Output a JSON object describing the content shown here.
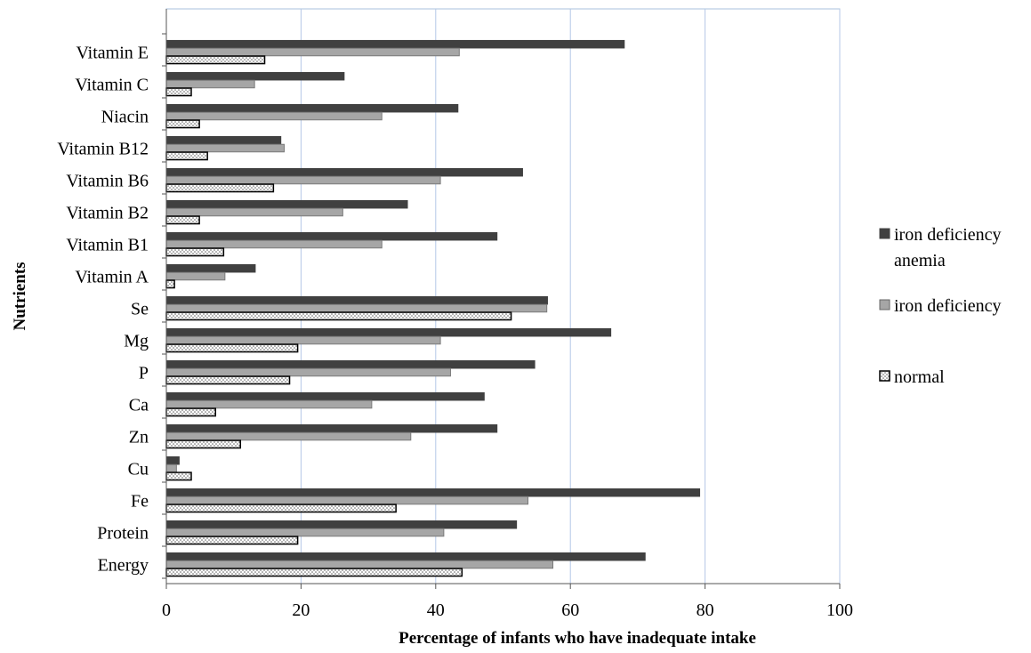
{
  "chart_data": {
    "type": "bar",
    "orientation": "horizontal",
    "title": "",
    "xlabel": "Percentage of infants who have inadequate intake",
    "ylabel": "Nutrients",
    "xlim": [
      0,
      100
    ],
    "xticks": [
      0,
      20,
      40,
      60,
      80,
      100
    ],
    "grid": true,
    "legend_position": "right",
    "categories": [
      "Vitamin E",
      "Vitamin C",
      "Niacin",
      "Vitamin B12",
      "Vitamin B6",
      "Vitamin B2",
      "Vitamin B1",
      "Vitamin A",
      "Se",
      "Mg",
      "P",
      "Ca",
      "Zn",
      "Cu",
      "Fe",
      "Protein",
      "Energy"
    ],
    "series": [
      {
        "name": "iron deficiency anemia",
        "name_lines": [
          "iron deficiency",
          "anemia"
        ],
        "color": "#404040",
        "pattern": "solid",
        "values": [
          68,
          26.4,
          43.3,
          17,
          52.9,
          35.8,
          49.1,
          13.2,
          56.6,
          66,
          54.7,
          47.2,
          49.1,
          1.9,
          79.2,
          52,
          71.1
        ]
      },
      {
        "name": "iron deficiency",
        "name_lines": [
          "iron deficiency"
        ],
        "color": "#a6a6a6",
        "pattern": "solid",
        "values": [
          43.5,
          13.1,
          32,
          17.5,
          40.7,
          26.2,
          32,
          8.7,
          56.5,
          40.7,
          42.2,
          30.5,
          36.3,
          1.5,
          53.7,
          41.2,
          57.4
        ]
      },
      {
        "name": "normal",
        "name_lines": [
          "normal"
        ],
        "color": "#ffffff",
        "pattern": "dotted",
        "values": [
          14.6,
          3.7,
          4.9,
          6.1,
          15.9,
          4.9,
          8.5,
          1.2,
          51.2,
          19.5,
          18.3,
          7.3,
          11,
          3.7,
          34.1,
          19.5,
          43.9
        ]
      }
    ]
  }
}
